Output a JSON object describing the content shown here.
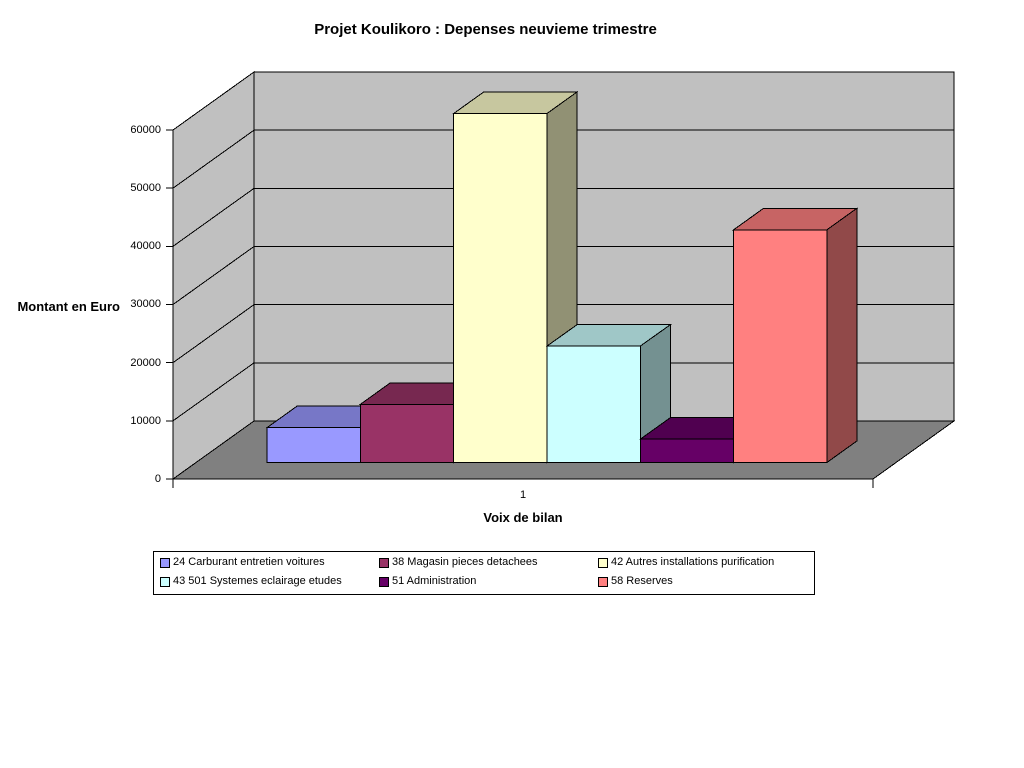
{
  "page": {
    "background": "#FFFFFF"
  },
  "chart_data": {
    "type": "bar",
    "projection": "3d",
    "title": "Projet Koulikoro : Depenses neuvieme trimestre",
    "xlabel": "Voix de bilan",
    "ylabel": "Montant en Euro",
    "categories": [
      "1"
    ],
    "series": [
      {
        "name": "24 Carburant entretien voitures",
        "color": "#9999FF",
        "values": [
          6000
        ]
      },
      {
        "name": "38 Magasin pieces detachees",
        "color": "#993366",
        "values": [
          10000
        ]
      },
      {
        "name": "42 Autres installations purification",
        "color": "#FFFFCC",
        "values": [
          60000
        ]
      },
      {
        "name": "43 501 Systemes eclairage etudes",
        "color": "#CCFFFF",
        "values": [
          20000
        ]
      },
      {
        "name": "51 Administration",
        "color": "#660066",
        "values": [
          4000
        ]
      },
      {
        "name": "58 Reserves",
        "color": "#FF8080",
        "values": [
          40000
        ]
      }
    ],
    "ylim": [
      0,
      60000
    ],
    "ytick_step": 10000,
    "yticks": [
      "0",
      "10000",
      "20000",
      "30000",
      "40000",
      "50000",
      "60000"
    ],
    "gridlines": true,
    "legend_position": "bottom",
    "wall_color": "#C0C0C0",
    "floor_color": "#808080",
    "outline_color": "#000000"
  }
}
